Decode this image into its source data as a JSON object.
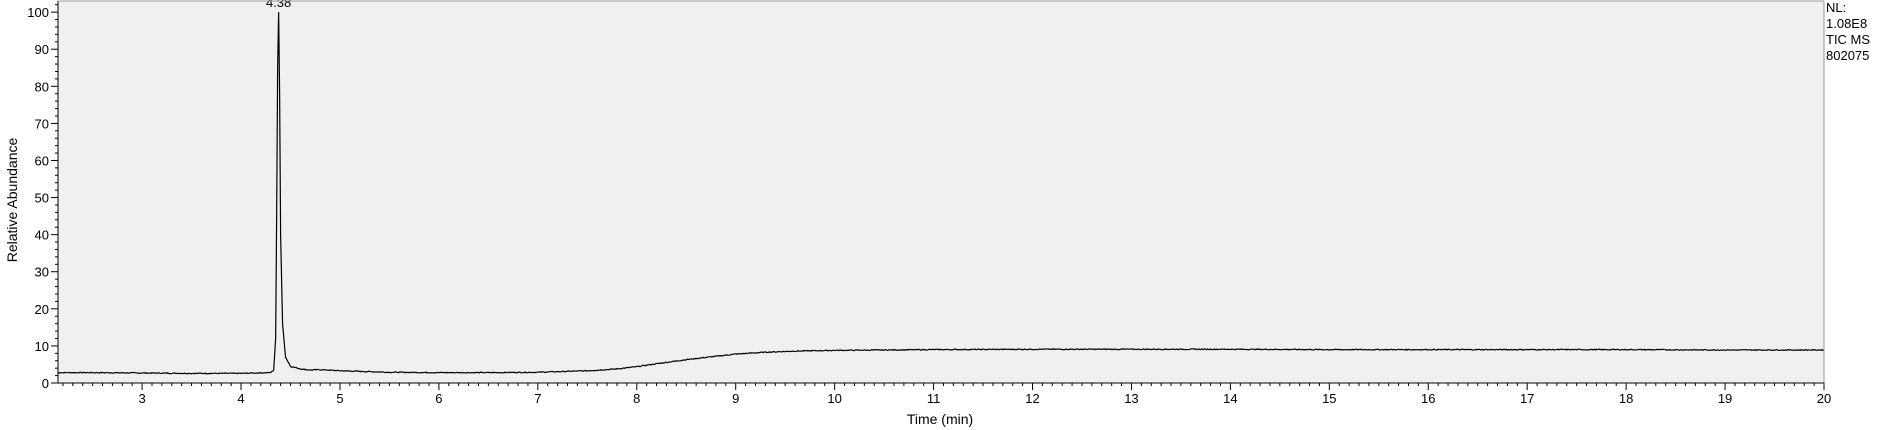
{
  "chart_data": {
    "type": "line",
    "title": "",
    "xlabel": "Time (min)",
    "ylabel": "Relative Abundance",
    "xlim": [
      2.15,
      20.0
    ],
    "ylim": [
      0,
      103
    ],
    "x_ticks": [
      3,
      4,
      5,
      6,
      7,
      8,
      9,
      10,
      11,
      12,
      13,
      14,
      15,
      16,
      17,
      18,
      19,
      20
    ],
    "y_ticks": [
      0,
      10,
      20,
      30,
      40,
      50,
      60,
      70,
      80,
      90,
      100
    ],
    "x_tick_labels": [
      "3",
      "4",
      "5",
      "6",
      "7",
      "8",
      "9",
      "10",
      "11",
      "12",
      "13",
      "14",
      "15",
      "16",
      "17",
      "18",
      "19",
      "20"
    ],
    "y_tick_labels": [
      "0",
      "10",
      "20",
      "30",
      "40",
      "50",
      "60",
      "70",
      "80",
      "90",
      "100"
    ],
    "grid": false,
    "plot_background": "#f0f0f0",
    "line_color": "#000000",
    "annotations": [
      {
        "text": "4.38",
        "x": 4.38,
        "y": 100
      }
    ],
    "side_info": [
      "NL:",
      "1.08E8",
      "TIC  MS",
      "802075"
    ],
    "series": [
      {
        "x": [
          2.15,
          2.5,
          3.0,
          3.5,
          4.0,
          4.3,
          4.33,
          4.35,
          4.36,
          4.37,
          4.38,
          4.39,
          4.4,
          4.42,
          4.45,
          4.5,
          4.6,
          4.7,
          4.8,
          5.0,
          5.5,
          6.0,
          6.5,
          7.0,
          7.5,
          7.8,
          8.0,
          8.2,
          8.5,
          8.8,
          9.0,
          9.3,
          9.6,
          10.0,
          11.0,
          12.0,
          13.0,
          14.0,
          15.0,
          16.0,
          17.0,
          18.0,
          19.0,
          20.0
        ],
        "y": [
          2.8,
          2.8,
          2.7,
          2.6,
          2.6,
          2.8,
          3.5,
          12,
          45,
          85,
          100,
          78,
          40,
          16,
          7,
          4.5,
          3.8,
          3.5,
          3.6,
          3.3,
          2.9,
          2.8,
          2.8,
          2.9,
          3.3,
          3.8,
          4.4,
          5.2,
          6.3,
          7.2,
          7.8,
          8.3,
          8.6,
          8.8,
          9.0,
          9.1,
          9.1,
          9.1,
          9.0,
          9.0,
          9.0,
          9.0,
          8.9,
          8.9
        ]
      }
    ]
  }
}
